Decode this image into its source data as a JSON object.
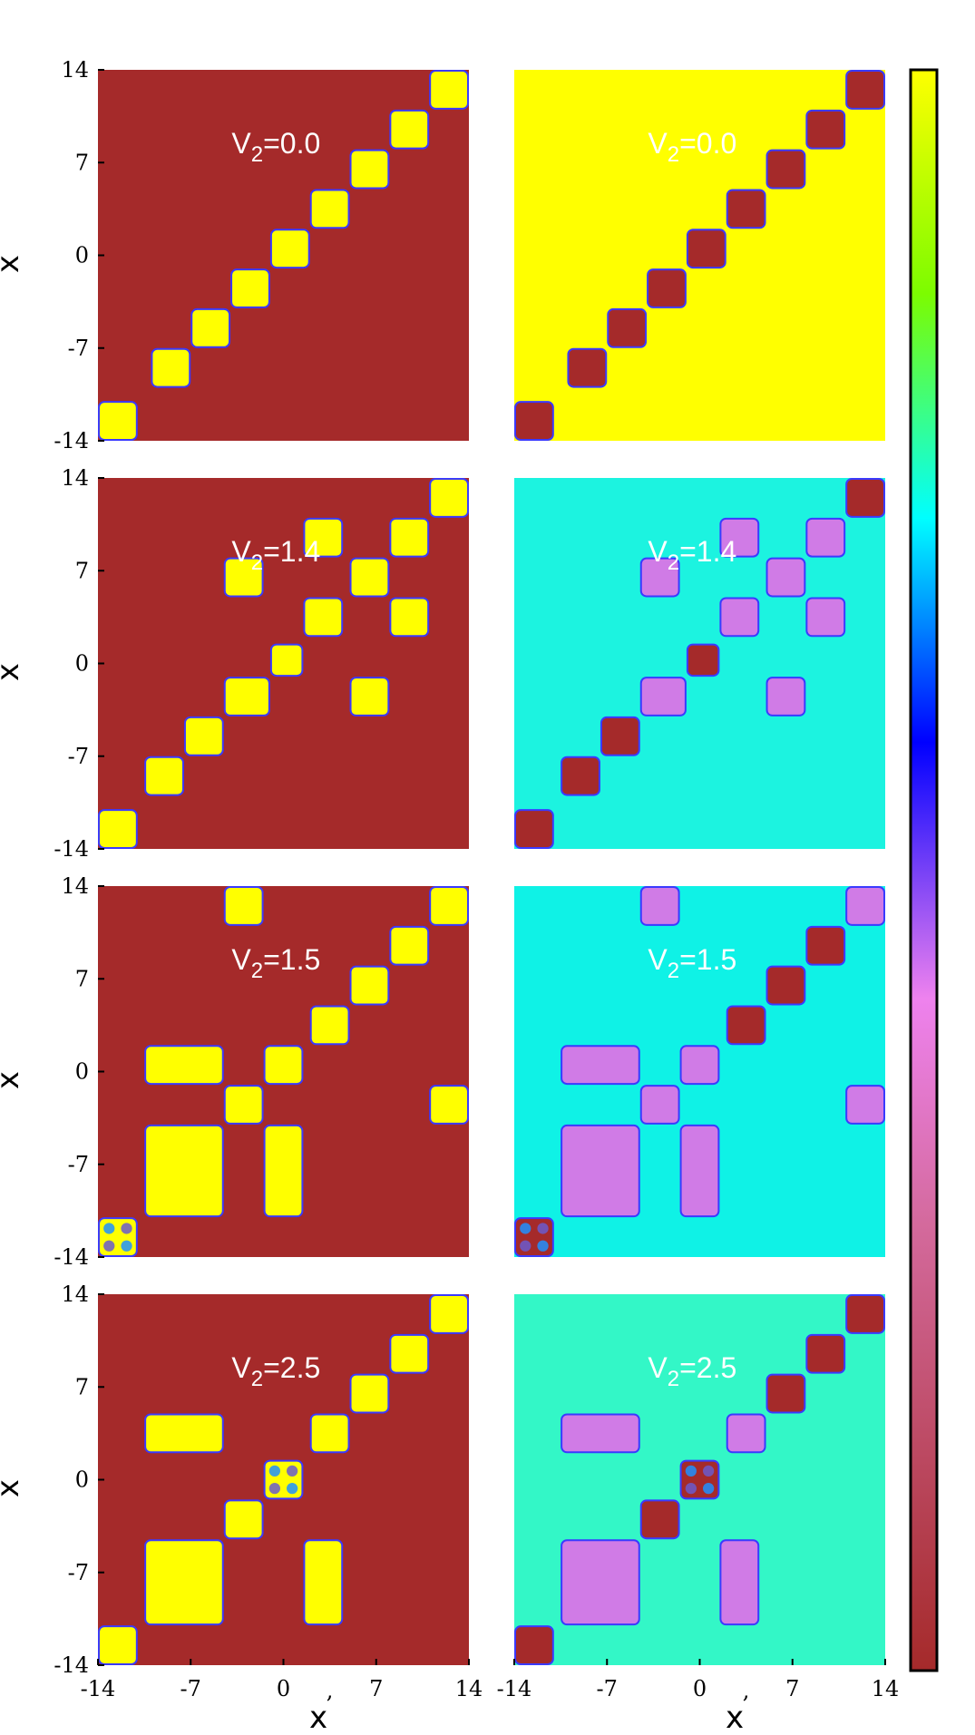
{
  "chart_data": {
    "type": "heatmap",
    "title": "",
    "layout": {
      "rows": 4,
      "cols": 2
    },
    "x_label": "x",
    "y_label": "x",
    "axis_range": [
      -14,
      14
    ],
    "x_ticks": [
      "-14",
      "-7",
      "0",
      "7",
      "14"
    ],
    "y_ticks": [
      "14",
      "7",
      "0",
      "-7",
      "-14"
    ],
    "x_tick_extra": ",",
    "colorbar": {
      "min_color": "#a52a2a",
      "mid_colors": [
        "#d46a9d",
        "#ee82ee",
        "#0000ff",
        "#00ffff",
        "#7cfc00"
      ],
      "max_color": "#ffff00",
      "ticks": []
    },
    "colors": {
      "brown": "#a52a2a",
      "yellow": "#ffff00",
      "cyan": "#0ff2e6",
      "aqua": "#1cf3e0",
      "seafoam": "#33f7c7",
      "violet": "#d07be6",
      "edge": "#3a3aff"
    },
    "panels": [
      {
        "label_base": "V",
        "label_sub": "2",
        "label_value": "=0.0",
        "background": "brown",
        "blocks": [
          {
            "x": [
              11,
              14
            ],
            "y": [
              11,
              14
            ],
            "color": "yellow"
          },
          {
            "x": [
              8,
              11
            ],
            "y": [
              8,
              11
            ],
            "color": "yellow"
          },
          {
            "x": [
              5,
              8
            ],
            "y": [
              5,
              8
            ],
            "color": "yellow"
          },
          {
            "x": [
              2,
              5
            ],
            "y": [
              2,
              5
            ],
            "color": "yellow"
          },
          {
            "x": [
              -1,
              2
            ],
            "y": [
              -1,
              2
            ],
            "color": "yellow"
          },
          {
            "x": [
              -4,
              -1
            ],
            "y": [
              -4,
              -1
            ],
            "color": "yellow"
          },
          {
            "x": [
              -7,
              -4
            ],
            "y": [
              -7,
              -4
            ],
            "color": "yellow"
          },
          {
            "x": [
              -10,
              -7
            ],
            "y": [
              -10,
              -7
            ],
            "color": "yellow"
          },
          {
            "x": [
              -11,
              -14
            ],
            "y": [
              -11,
              -14
            ],
            "color": "yellow"
          }
        ]
      },
      {
        "label_base": "V",
        "label_sub": "2",
        "label_value": "=0.0",
        "background": "yellow",
        "blocks": [
          {
            "x": [
              11,
              14
            ],
            "y": [
              11,
              14
            ],
            "color": "brown"
          },
          {
            "x": [
              8,
              11
            ],
            "y": [
              8,
              11
            ],
            "color": "brown"
          },
          {
            "x": [
              5,
              8
            ],
            "y": [
              5,
              8
            ],
            "color": "brown"
          },
          {
            "x": [
              2,
              5
            ],
            "y": [
              2,
              5
            ],
            "color": "brown"
          },
          {
            "x": [
              -1,
              2
            ],
            "y": [
              -1,
              2
            ],
            "color": "brown"
          },
          {
            "x": [
              -4,
              -1
            ],
            "y": [
              -4,
              -1
            ],
            "color": "brown"
          },
          {
            "x": [
              -7,
              -4
            ],
            "y": [
              -7,
              -4
            ],
            "color": "brown"
          },
          {
            "x": [
              -10,
              -7
            ],
            "y": [
              -10,
              -7
            ],
            "color": "brown"
          },
          {
            "x": [
              -11,
              -14
            ],
            "y": [
              -11,
              -14
            ],
            "color": "brown"
          }
        ]
      },
      {
        "label_base": "V",
        "label_sub": "2",
        "label_value": "=1.4",
        "background": "brown",
        "blocks": [
          {
            "x": [
              11,
              14
            ],
            "y": [
              11,
              14
            ],
            "color": "yellow"
          },
          {
            "x": [
              1.5,
              4.5
            ],
            "y": [
              8,
              11
            ],
            "color": "yellow"
          },
          {
            "x": [
              8,
              11
            ],
            "y": [
              8,
              11
            ],
            "color": "yellow"
          },
          {
            "x": [
              -4.5,
              -1.5
            ],
            "y": [
              5,
              8
            ],
            "color": "yellow"
          },
          {
            "x": [
              5,
              8
            ],
            "y": [
              5,
              8
            ],
            "color": "yellow"
          },
          {
            "x": [
              1.5,
              4.5
            ],
            "y": [
              2,
              5
            ],
            "color": "yellow"
          },
          {
            "x": [
              8,
              11
            ],
            "y": [
              2,
              5
            ],
            "color": "yellow"
          },
          {
            "x": [
              -1,
              1.5
            ],
            "y": [
              -1,
              1.5
            ],
            "color": "yellow"
          },
          {
            "x": [
              -4.5,
              -1
            ],
            "y": [
              -4,
              -1
            ],
            "color": "yellow"
          },
          {
            "x": [
              5,
              8
            ],
            "y": [
              -4,
              -1
            ],
            "color": "yellow"
          },
          {
            "x": [
              -7.5,
              -4.5
            ],
            "y": [
              -7,
              -4
            ],
            "color": "yellow"
          },
          {
            "x": [
              -10.5,
              -7.5
            ],
            "y": [
              -10,
              -7
            ],
            "color": "yellow"
          },
          {
            "x": [
              -11,
              -14
            ],
            "y": [
              -11,
              -14
            ],
            "color": "yellow"
          }
        ]
      },
      {
        "label_base": "V",
        "label_sub": "2",
        "label_value": "=1.4",
        "background": "aqua",
        "blocks": [
          {
            "x": [
              11,
              14
            ],
            "y": [
              11,
              14
            ],
            "color": "brown"
          },
          {
            "x": [
              1.5,
              4.5
            ],
            "y": [
              8,
              11
            ],
            "color": "violet"
          },
          {
            "x": [
              8,
              11
            ],
            "y": [
              8,
              11
            ],
            "color": "violet"
          },
          {
            "x": [
              -4.5,
              -1.5
            ],
            "y": [
              5,
              8
            ],
            "color": "violet"
          },
          {
            "x": [
              5,
              8
            ],
            "y": [
              5,
              8
            ],
            "color": "violet"
          },
          {
            "x": [
              1.5,
              4.5
            ],
            "y": [
              2,
              5
            ],
            "color": "violet"
          },
          {
            "x": [
              8,
              11
            ],
            "y": [
              2,
              5
            ],
            "color": "violet"
          },
          {
            "x": [
              -1,
              1.5
            ],
            "y": [
              -1,
              1.5
            ],
            "color": "brown"
          },
          {
            "x": [
              -4.5,
              -1
            ],
            "y": [
              -4,
              -1
            ],
            "color": "violet"
          },
          {
            "x": [
              5,
              8
            ],
            "y": [
              -4,
              -1
            ],
            "color": "violet"
          },
          {
            "x": [
              -7.5,
              -4.5
            ],
            "y": [
              -7,
              -4
            ],
            "color": "brown"
          },
          {
            "x": [
              -10.5,
              -7.5
            ],
            "y": [
              -10,
              -7
            ],
            "color": "brown"
          },
          {
            "x": [
              -11,
              -14
            ],
            "y": [
              -11,
              -14
            ],
            "color": "brown"
          }
        ]
      },
      {
        "label_base": "V",
        "label_sub": "2",
        "label_value": "=1.5",
        "background": "brown",
        "blocks": [
          {
            "x": [
              -4.5,
              -1.5
            ],
            "y": [
              11,
              14
            ],
            "color": "yellow"
          },
          {
            "x": [
              11,
              14
            ],
            "y": [
              11,
              14
            ],
            "color": "yellow"
          },
          {
            "x": [
              8,
              11
            ],
            "y": [
              8,
              11
            ],
            "color": "yellow"
          },
          {
            "x": [
              5,
              8
            ],
            "y": [
              5,
              8
            ],
            "color": "yellow"
          },
          {
            "x": [
              2,
              5
            ],
            "y": [
              2,
              5
            ],
            "color": "yellow"
          },
          {
            "x": [
              -10.5,
              -4.5
            ],
            "y": [
              -1,
              2
            ],
            "color": "yellow"
          },
          {
            "x": [
              -1.5,
              1.5
            ],
            "y": [
              -1,
              2
            ],
            "color": "yellow"
          },
          {
            "x": [
              -4.5,
              -1.5
            ],
            "y": [
              -4,
              -1
            ],
            "color": "yellow"
          },
          {
            "x": [
              11,
              14
            ],
            "y": [
              -4,
              -1
            ],
            "color": "yellow"
          },
          {
            "x": [
              -10.5,
              -4.5
            ],
            "y": [
              -11,
              -4
            ],
            "color": "yellow"
          },
          {
            "x": [
              -1.5,
              1.5
            ],
            "y": [
              -11,
              -4
            ],
            "color": "yellow"
          },
          {
            "x": [
              -14,
              -11
            ],
            "y": [
              -14,
              -11
            ],
            "color": "yellow",
            "speckled": true
          }
        ]
      },
      {
        "label_base": "V",
        "label_sub": "2",
        "label_value": "=1.5",
        "background": "cyan",
        "blocks": [
          {
            "x": [
              -4.5,
              -1.5
            ],
            "y": [
              11,
              14
            ],
            "color": "violet"
          },
          {
            "x": [
              11,
              14
            ],
            "y": [
              11,
              14
            ],
            "color": "violet"
          },
          {
            "x": [
              8,
              11
            ],
            "y": [
              8,
              11
            ],
            "color": "brown"
          },
          {
            "x": [
              5,
              8
            ],
            "y": [
              5,
              8
            ],
            "color": "brown"
          },
          {
            "x": [
              2,
              5
            ],
            "y": [
              2,
              5
            ],
            "color": "brown"
          },
          {
            "x": [
              -10.5,
              -4.5
            ],
            "y": [
              -1,
              2
            ],
            "color": "violet"
          },
          {
            "x": [
              -1.5,
              1.5
            ],
            "y": [
              -1,
              2
            ],
            "color": "violet"
          },
          {
            "x": [
              -4.5,
              -1.5
            ],
            "y": [
              -4,
              -1
            ],
            "color": "violet"
          },
          {
            "x": [
              11,
              14
            ],
            "y": [
              -4,
              -1
            ],
            "color": "violet"
          },
          {
            "x": [
              -10.5,
              -4.5
            ],
            "y": [
              -11,
              -4
            ],
            "color": "violet"
          },
          {
            "x": [
              -1.5,
              1.5
            ],
            "y": [
              -11,
              -4
            ],
            "color": "violet"
          },
          {
            "x": [
              -14,
              -11
            ],
            "y": [
              -14,
              -11
            ],
            "color": "brown",
            "speckled": true
          }
        ]
      },
      {
        "label_base": "V",
        "label_sub": "2",
        "label_value": "=2.5",
        "background": "brown",
        "blocks": [
          {
            "x": [
              11,
              14
            ],
            "y": [
              11,
              14
            ],
            "color": "yellow"
          },
          {
            "x": [
              8,
              11
            ],
            "y": [
              8,
              11
            ],
            "color": "yellow"
          },
          {
            "x": [
              5,
              8
            ],
            "y": [
              5,
              8
            ],
            "color": "yellow"
          },
          {
            "x": [
              -10.5,
              -4.5
            ],
            "y": [
              2,
              5
            ],
            "color": "yellow"
          },
          {
            "x": [
              2,
              5
            ],
            "y": [
              2,
              5
            ],
            "color": "yellow"
          },
          {
            "x": [
              -1.5,
              1.5
            ],
            "y": [
              -1.5,
              1.5
            ],
            "color": "yellow",
            "speckled": true
          },
          {
            "x": [
              -4.5,
              -1.5
            ],
            "y": [
              -4.5,
              -1.5
            ],
            "color": "yellow"
          },
          {
            "x": [
              -10.5,
              -4.5
            ],
            "y": [
              -11,
              -4.5
            ],
            "color": "yellow"
          },
          {
            "x": [
              1.5,
              4.5
            ],
            "y": [
              -11,
              -4.5
            ],
            "color": "yellow"
          },
          {
            "x": [
              -14,
              -11
            ],
            "y": [
              -14,
              -11
            ],
            "color": "yellow"
          }
        ]
      },
      {
        "label_base": "V",
        "label_sub": "2",
        "label_value": "=2.5",
        "background": "seafoam",
        "blocks": [
          {
            "x": [
              11,
              14
            ],
            "y": [
              11,
              14
            ],
            "color": "brown"
          },
          {
            "x": [
              8,
              11
            ],
            "y": [
              8,
              11
            ],
            "color": "brown"
          },
          {
            "x": [
              5,
              8
            ],
            "y": [
              5,
              8
            ],
            "color": "brown"
          },
          {
            "x": [
              -10.5,
              -4.5
            ],
            "y": [
              2,
              5
            ],
            "color": "violet"
          },
          {
            "x": [
              2,
              5
            ],
            "y": [
              2,
              5
            ],
            "color": "violet"
          },
          {
            "x": [
              -1.5,
              1.5
            ],
            "y": [
              -1.5,
              1.5
            ],
            "color": "brown",
            "speckled": true
          },
          {
            "x": [
              -4.5,
              -1.5
            ],
            "y": [
              -4.5,
              -1.5
            ],
            "color": "brown"
          },
          {
            "x": [
              -10.5,
              -4.5
            ],
            "y": [
              -11,
              -4.5
            ],
            "color": "violet"
          },
          {
            "x": [
              1.5,
              4.5
            ],
            "y": [
              -11,
              -4.5
            ],
            "color": "violet"
          },
          {
            "x": [
              -14,
              -11
            ],
            "y": [
              -14,
              -11
            ],
            "color": "brown"
          }
        ]
      }
    ]
  }
}
